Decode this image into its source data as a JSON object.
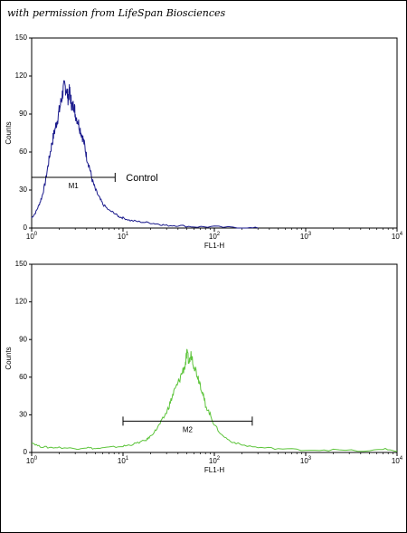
{
  "caption": "with permission from LifeSpan Biosciences",
  "chart_data": [
    {
      "type": "line",
      "title": "",
      "xlabel": "FL1-H",
      "ylabel": "Counts",
      "x_scale": "log",
      "xlim": [
        1,
        10000
      ],
      "ylim": [
        0,
        150
      ],
      "x_ticks": [
        {
          "value": 1,
          "base": "10",
          "exp": "0"
        },
        {
          "value": 10,
          "base": "10",
          "exp": "1"
        },
        {
          "value": 100,
          "base": "10",
          "exp": "2"
        },
        {
          "value": 1000,
          "base": "10",
          "exp": "3"
        },
        {
          "value": 10000,
          "base": "10",
          "exp": "4"
        }
      ],
      "y_ticks": [
        "0",
        "30",
        "60",
        "90",
        "120",
        "150"
      ],
      "series_color": "#1a1a8c",
      "series": [
        {
          "x": [
            1.0,
            1.1,
            1.2,
            1.3,
            1.4,
            1.5,
            1.6,
            1.7,
            1.8,
            1.9,
            2.0,
            2.1,
            2.2,
            2.3,
            2.4,
            2.5,
            2.6,
            2.7,
            2.8,
            2.9,
            3.0,
            3.2,
            3.4,
            3.6,
            3.8,
            4.0,
            4.3,
            4.6,
            5.0,
            5.5,
            6.0,
            7.0,
            8.0,
            9.0,
            10,
            12,
            15,
            20,
            25,
            30,
            40,
            60,
            100,
            200,
            300
          ],
          "y": [
            8,
            12,
            18,
            25,
            35,
            48,
            60,
            70,
            78,
            85,
            92,
            100,
            108,
            112,
            110,
            103,
            108,
            100,
            95,
            98,
            90,
            85,
            78,
            72,
            65,
            56,
            48,
            38,
            30,
            24,
            19,
            14,
            12,
            9,
            8,
            6,
            5,
            4,
            3,
            2,
            2,
            1,
            1,
            0,
            0
          ]
        }
      ],
      "marker": {
        "label": "M1",
        "x_start": 1,
        "x_end": 8.2,
        "y": 40
      },
      "annotation": "Control"
    },
    {
      "type": "line",
      "title": "",
      "xlabel": "FL1-H",
      "ylabel": "Counts",
      "x_scale": "log",
      "xlim": [
        1,
        10000
      ],
      "ylim": [
        0,
        150
      ],
      "x_ticks": [
        {
          "value": 1,
          "base": "10",
          "exp": "0"
        },
        {
          "value": 10,
          "base": "10",
          "exp": "1"
        },
        {
          "value": 100,
          "base": "10",
          "exp": "2"
        },
        {
          "value": 1000,
          "base": "10",
          "exp": "3"
        },
        {
          "value": 10000,
          "base": "10",
          "exp": "4"
        }
      ],
      "y_ticks": [
        "0",
        "30",
        "60",
        "90",
        "120",
        "150"
      ],
      "series_color": "#5cc43a",
      "series": [
        {
          "x": [
            1.0,
            1.2,
            1.5,
            2,
            3,
            4,
            5,
            7,
            10,
            12,
            15,
            18,
            20,
            23,
            26,
            30,
            33,
            36,
            40,
            44,
            48,
            50,
            53,
            56,
            60,
            65,
            70,
            75,
            80,
            90,
            100,
            120,
            150,
            200,
            300,
            500,
            1000,
            2000,
            5000,
            7000,
            10000
          ],
          "y": [
            8,
            5,
            4,
            4,
            3,
            4,
            3,
            4,
            5,
            6,
            8,
            10,
            13,
            18,
            24,
            32,
            40,
            48,
            55,
            63,
            70,
            78,
            72,
            78,
            70,
            62,
            55,
            46,
            38,
            30,
            22,
            14,
            9,
            6,
            4,
            3,
            2,
            2,
            1,
            3,
            1
          ]
        }
      ],
      "marker": {
        "label": "M2",
        "x_start": 10,
        "x_end": 260,
        "y": 25
      }
    }
  ]
}
